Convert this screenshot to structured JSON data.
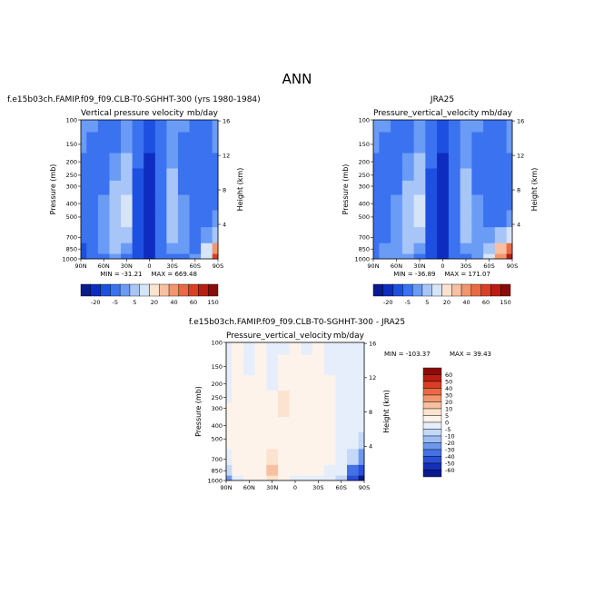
{
  "figure": {
    "main_title": "ANN"
  },
  "chart_data": [
    {
      "type": "heatmap",
      "left_title": "f.e15b03ch.FAMIP.f09_f09.CLB-T0-SGHHT-300 (yrs 1980-1984)",
      "center_title": "",
      "var_label": "Vertical pressure velocity",
      "units": "mb/day",
      "x_ticks": [
        "90N",
        "60N",
        "30N",
        "0",
        "30S",
        "60S",
        "90S"
      ],
      "y_ticks": [
        "100",
        "150",
        "200",
        "250",
        "300",
        "400",
        "500",
        "700",
        "850",
        "1000"
      ],
      "y_values": [
        100,
        150,
        200,
        250,
        300,
        400,
        500,
        700,
        850,
        1000
      ],
      "ylabel": "Pressure (mb)",
      "right_ticks": [
        "16",
        "12",
        "8",
        "4"
      ],
      "right_values_km": [
        16,
        12,
        8,
        4
      ],
      "ylabel_right": "Height (km)",
      "min_label": "MIN = -31.21",
      "max_label": "MAX = 669.48",
      "colorbar_labels": [
        "-20",
        "-5",
        "5",
        "20",
        "40",
        "60",
        "150"
      ],
      "colorbar_colors": [
        "#0b1a8c",
        "#0f2cc0",
        "#1d4fe0",
        "#3a72f0",
        "#6a9bf5",
        "#a7c5f7",
        "#d6e4f8",
        "#fbe3d0",
        "#f7c0a0",
        "#f2966e",
        "#ea6a45",
        "#da3f25",
        "#b81e13",
        "#8a0c0a"
      ],
      "lat_centers": [
        90,
        75,
        60,
        45,
        30,
        15,
        0,
        -15,
        -30,
        -45,
        -60,
        -75,
        -90
      ],
      "field_color_index": [
        [
          4,
          4,
          3,
          3,
          4,
          3,
          2,
          3,
          4,
          4,
          3,
          3,
          4
        ],
        [
          4,
          3,
          3,
          3,
          4,
          3,
          2,
          3,
          4,
          3,
          3,
          3,
          4
        ],
        [
          3,
          3,
          3,
          4,
          5,
          3,
          1,
          3,
          4,
          3,
          3,
          3,
          3
        ],
        [
          3,
          3,
          3,
          4,
          5,
          2,
          1,
          3,
          5,
          3,
          3,
          3,
          3
        ],
        [
          3,
          3,
          3,
          5,
          5,
          2,
          1,
          3,
          5,
          3,
          3,
          3,
          3
        ],
        [
          3,
          3,
          4,
          5,
          6,
          2,
          1,
          3,
          5,
          4,
          3,
          3,
          3
        ],
        [
          3,
          3,
          4,
          5,
          6,
          2,
          1,
          3,
          5,
          4,
          3,
          3,
          4
        ],
        [
          3,
          3,
          4,
          5,
          5,
          2,
          1,
          3,
          5,
          4,
          3,
          4,
          5
        ],
        [
          2,
          3,
          4,
          5,
          4,
          2,
          1,
          3,
          4,
          4,
          3,
          6,
          9
        ],
        [
          2,
          3,
          3,
          4,
          3,
          2,
          1,
          3,
          3,
          3,
          4,
          6,
          11
        ]
      ],
      "colorbar_label_vals": [
        -20,
        -5,
        5,
        20,
        40,
        60,
        150
      ]
    },
    {
      "type": "heatmap",
      "left_title": "",
      "center_title": "JRA25",
      "var_label": "Pressure_vertical_velocity",
      "units": "mb/day",
      "x_ticks": [
        "90N",
        "60N",
        "30N",
        "0",
        "30S",
        "60S",
        "90S"
      ],
      "y_ticks": [
        "100",
        "150",
        "200",
        "250",
        "300",
        "400",
        "500",
        "700",
        "850",
        "1000"
      ],
      "y_values": [
        100,
        150,
        200,
        250,
        300,
        400,
        500,
        700,
        850,
        1000
      ],
      "ylabel": "Pressure (mb)",
      "right_ticks": [
        "16",
        "12",
        "8",
        "4"
      ],
      "right_values_km": [
        16,
        12,
        8,
        4
      ],
      "ylabel_right": "Height (km)",
      "min_label": "MIN = -36.89",
      "max_label": "MAX = 171.07",
      "colorbar_labels": [
        "-20",
        "-5",
        "5",
        "20",
        "40",
        "60",
        "150"
      ],
      "colorbar_colors": [
        "#0b1a8c",
        "#0f2cc0",
        "#1d4fe0",
        "#3a72f0",
        "#6a9bf5",
        "#a7c5f7",
        "#d6e4f8",
        "#fbe3d0",
        "#f7c0a0",
        "#f2966e",
        "#ea6a45",
        "#da3f25",
        "#b81e13",
        "#8a0c0a"
      ],
      "lat_centers": [
        90,
        75,
        60,
        45,
        30,
        15,
        0,
        -15,
        -30,
        -45,
        -60,
        -75,
        -90
      ],
      "field_color_index": [
        [
          4,
          4,
          3,
          3,
          4,
          3,
          2,
          3,
          4,
          4,
          3,
          3,
          4
        ],
        [
          4,
          3,
          3,
          3,
          4,
          3,
          2,
          3,
          4,
          3,
          3,
          3,
          4
        ],
        [
          3,
          3,
          3,
          4,
          5,
          3,
          1,
          3,
          4,
          3,
          3,
          3,
          3
        ],
        [
          3,
          3,
          3,
          4,
          5,
          2,
          1,
          3,
          5,
          3,
          3,
          3,
          3
        ],
        [
          3,
          3,
          3,
          5,
          5,
          2,
          1,
          3,
          5,
          3,
          3,
          3,
          3
        ],
        [
          3,
          3,
          4,
          5,
          6,
          2,
          1,
          3,
          5,
          4,
          3,
          3,
          3
        ],
        [
          3,
          3,
          4,
          5,
          6,
          2,
          1,
          3,
          5,
          4,
          3,
          3,
          4
        ],
        [
          3,
          3,
          4,
          5,
          5,
          2,
          1,
          3,
          5,
          4,
          4,
          5,
          6
        ],
        [
          3,
          4,
          4,
          5,
          4,
          2,
          1,
          3,
          4,
          4,
          5,
          8,
          10
        ],
        [
          3,
          4,
          4,
          4,
          3,
          2,
          1,
          3,
          3,
          4,
          6,
          9,
          12
        ]
      ],
      "colorbar_label_vals": [
        -20,
        -5,
        5,
        20,
        40,
        60,
        150
      ]
    },
    {
      "type": "heatmap",
      "left_title": "f.e15b03ch.FAMIP.f09_f09.CLB-T0-SGHHT-300 - JRA25",
      "center_title": "",
      "var_label": "Pressure_vertical_velocity",
      "units": "mb/day",
      "x_ticks": [
        "90N",
        "60N",
        "30N",
        "0",
        "30S",
        "60S",
        "90S"
      ],
      "y_ticks": [
        "100",
        "150",
        "200",
        "250",
        "300",
        "400",
        "500",
        "700",
        "850",
        "1000"
      ],
      "y_values": [
        100,
        150,
        200,
        250,
        300,
        400,
        500,
        700,
        850,
        1000
      ],
      "ylabel": "Pressure (mb)",
      "right_ticks": [
        "16",
        "12",
        "8",
        "4"
      ],
      "right_values_km": [
        16,
        12,
        8,
        4
      ],
      "ylabel_right": "Height (km)",
      "min_label": "MIN = -103.37",
      "max_label": "MAX =  39.43",
      "colorbar_labels": [
        "60",
        "50",
        "40",
        "30",
        "20",
        "10",
        "5",
        "0",
        "-5",
        "-10",
        "-20",
        "-30",
        "-40",
        "-50",
        "-60"
      ],
      "colorbar_colors": [
        "#8a0c0a",
        "#b81e13",
        "#da3f25",
        "#ea6a45",
        "#f2966e",
        "#f7c0a0",
        "#fbe3d0",
        "#fdf3ea",
        "#e6eefb",
        "#c4d8f8",
        "#9dbcf4",
        "#6d98ee",
        "#4472e6",
        "#2a4fd6",
        "#1530b8",
        "#0b1a8c"
      ],
      "lat_centers": [
        90,
        75,
        60,
        45,
        30,
        15,
        0,
        -15,
        -30,
        -45,
        -60,
        -75,
        -90
      ],
      "field_color_index": [
        [
          8,
          7,
          8,
          7,
          8,
          8,
          7,
          8,
          7,
          8,
          8,
          8,
          8
        ],
        [
          8,
          7,
          8,
          7,
          8,
          7,
          7,
          7,
          7,
          8,
          8,
          8,
          8
        ],
        [
          8,
          7,
          7,
          7,
          8,
          7,
          7,
          7,
          7,
          7,
          8,
          8,
          8
        ],
        [
          8,
          7,
          7,
          7,
          7,
          6,
          7,
          7,
          7,
          7,
          8,
          8,
          8
        ],
        [
          7,
          7,
          7,
          7,
          7,
          6,
          7,
          7,
          7,
          7,
          8,
          8,
          8
        ],
        [
          7,
          7,
          7,
          7,
          7,
          7,
          7,
          7,
          7,
          7,
          8,
          8,
          8
        ],
        [
          7,
          7,
          7,
          7,
          7,
          7,
          7,
          7,
          7,
          7,
          8,
          8,
          9
        ],
        [
          8,
          7,
          7,
          7,
          6,
          7,
          7,
          7,
          7,
          7,
          8,
          9,
          11
        ],
        [
          9,
          7,
          7,
          7,
          5,
          7,
          7,
          7,
          7,
          8,
          8,
          12,
          13
        ],
        [
          11,
          8,
          7,
          7,
          6,
          7,
          8,
          8,
          8,
          8,
          9,
          13,
          15
        ]
      ]
    }
  ]
}
